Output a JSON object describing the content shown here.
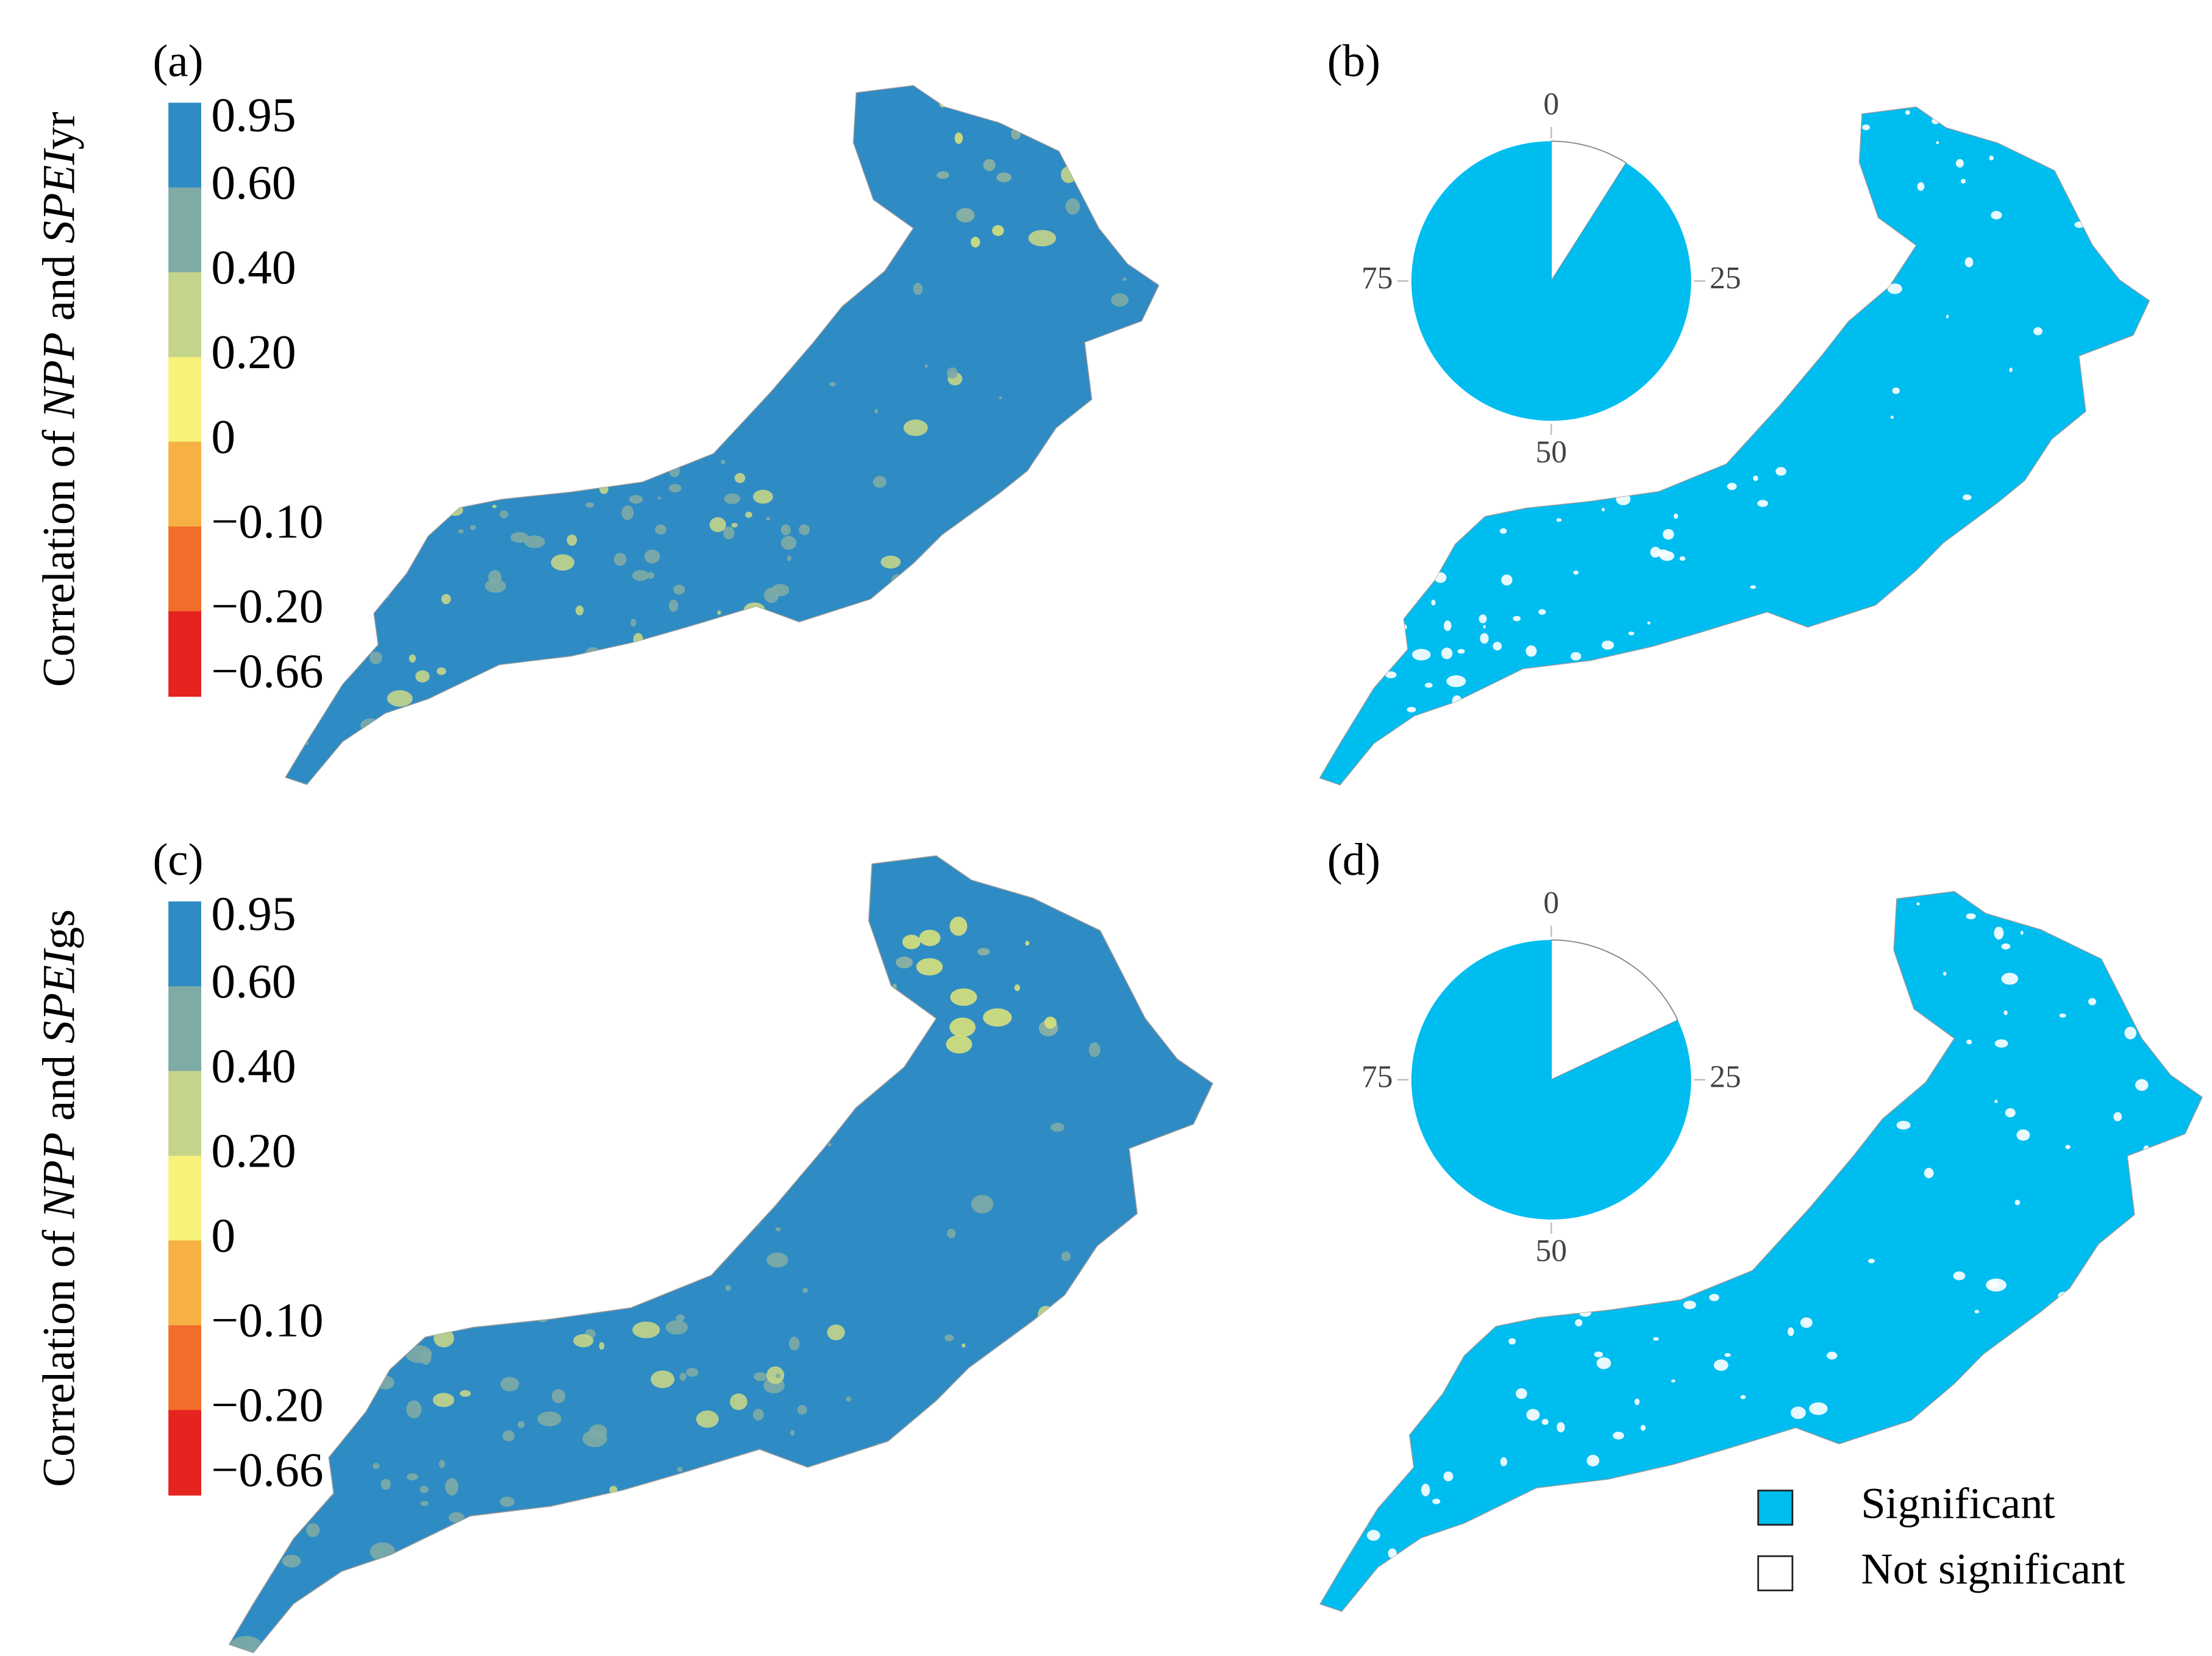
{
  "panels": [
    {
      "label": "(a)",
      "axis_label": {
        "prefix": "Correlation of ",
        "var1": "NPP",
        "mid": " and ",
        "var2": "SPEI",
        "suffix": "yr"
      },
      "colorbar": {
        "ticks": [
          0.95,
          {
            "value": 0.6,
            "label": "0.60"
          },
          {
            "value": 0.4,
            "label": "0.40"
          },
          {
            "value": 0.2,
            "label": "0.20"
          },
          0,
          {
            "value": -0.1,
            "label": "−0.10"
          },
          {
            "value": -0.2,
            "label": "−0.20"
          },
          {
            "value": -0.66,
            "label": "−0.66"
          }
        ],
        "colors": [
          "#2e8bc4",
          "#7eaba6",
          "#c4d48a",
          "#f6f27a",
          "#f7b043",
          "#f26c2a",
          "#e5231f"
        ]
      }
    },
    {
      "label": "(b)",
      "pie": {
        "values": [
          91,
          9
        ],
        "ticks": [
          0,
          25,
          50,
          75
        ]
      }
    },
    {
      "label": "(c)",
      "axis_label": {
        "prefix": "Correlation of ",
        "var1": "NPP",
        "mid": " and ",
        "var2": "SPEI",
        "suffix": "gs"
      },
      "colorbar": {
        "ticks": [
          0.95,
          {
            "value": 0.6,
            "label": "0.60"
          },
          {
            "value": 0.4,
            "label": "0.40"
          },
          {
            "value": 0.2,
            "label": "0.20"
          },
          0,
          {
            "value": -0.1,
            "label": "−0.10"
          },
          {
            "value": -0.2,
            "label": "−0.20"
          },
          {
            "value": -0.66,
            "label": "−0.66"
          }
        ],
        "colors": [
          "#2e8bc4",
          "#7eaba6",
          "#c4d48a",
          "#f6f27a",
          "#f7b043",
          "#f26c2a",
          "#e5231f"
        ]
      }
    },
    {
      "label": "(d)",
      "pie": {
        "values": [
          82,
          18
        ],
        "ticks": [
          0,
          25,
          50,
          75
        ]
      }
    }
  ],
  "legend": [
    {
      "name": "Significant",
      "color": "#00bdf0"
    },
    {
      "name": "Not significant",
      "color": "#ffffff"
    }
  ]
}
